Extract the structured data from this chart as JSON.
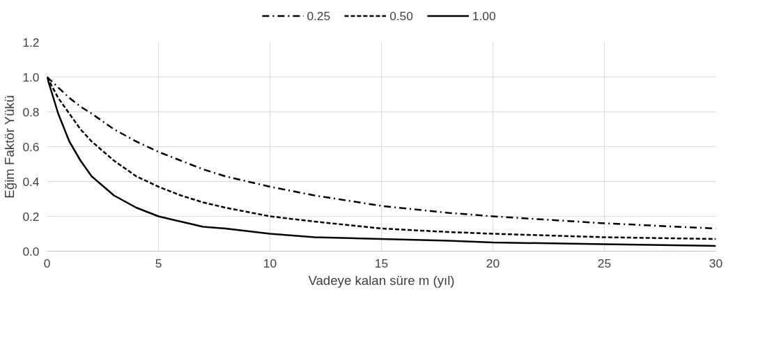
{
  "chart_data": {
    "type": "line",
    "xlabel": "Vadeye kalan süre m (yıl)",
    "ylabel": "Eğim Faktör Yükü",
    "x": [
      0,
      0.5,
      1,
      1.5,
      2,
      3,
      4,
      5,
      6,
      7,
      8,
      10,
      12,
      15,
      18,
      20,
      25,
      30
    ],
    "series": [
      {
        "name": "0.25",
        "color": "#000000",
        "line_style": "dashdot",
        "values": [
          1,
          0.94,
          0.88,
          0.83,
          0.79,
          0.7,
          0.63,
          0.57,
          0.52,
          0.47,
          0.43,
          0.37,
          0.32,
          0.26,
          0.22,
          0.2,
          0.16,
          0.13
        ]
      },
      {
        "name": "0.50",
        "color": "#000000",
        "line_style": "dashed",
        "values": [
          1,
          0.88,
          0.79,
          0.7,
          0.63,
          0.52,
          0.43,
          0.37,
          0.32,
          0.28,
          0.25,
          0.2,
          0.17,
          0.13,
          0.11,
          0.1,
          0.08,
          0.07
        ]
      },
      {
        "name": "1.00",
        "color": "#000000",
        "line_style": "solid",
        "values": [
          1,
          0.79,
          0.63,
          0.52,
          0.43,
          0.32,
          0.25,
          0.2,
          0.17,
          0.14,
          0.13,
          0.1,
          0.08,
          0.07,
          0.06,
          0.05,
          0.04,
          0.03
        ]
      }
    ],
    "xlim": [
      0,
      30
    ],
    "xticks": [
      0,
      5,
      10,
      15,
      20,
      25,
      30
    ],
    "ylim": [
      0,
      1.2
    ],
    "yticks": [
      {
        "value": 0,
        "label": "0.0"
      },
      {
        "value": 0.2,
        "label": "0.2"
      },
      {
        "value": 0.4,
        "label": "0.4"
      },
      {
        "value": 0.6,
        "label": "0.6"
      },
      {
        "value": 0.8,
        "label": "0.8"
      },
      {
        "value": 1.0,
        "label": "1.0"
      },
      {
        "value": 1.2,
        "label": "1.2"
      }
    ],
    "grid": true,
    "legend": "top",
    "marker": "none"
  }
}
